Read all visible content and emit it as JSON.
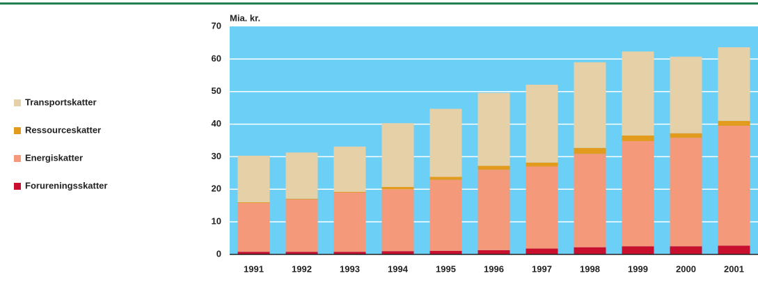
{
  "chart_data": {
    "type": "stacked_bar",
    "y_label": "Mia. kr.",
    "categories": [
      "1991",
      "1992",
      "1993",
      "1994",
      "1995",
      "1996",
      "1997",
      "1998",
      "1999",
      "2000",
      "2001"
    ],
    "series": [
      {
        "name": "Forureningsskatter",
        "color": "#c8102e",
        "values": [
          0.8,
          0.8,
          0.8,
          1.0,
          1.1,
          1.3,
          1.8,
          2.2,
          2.5,
          2.5,
          2.7
        ]
      },
      {
        "name": "Energiskatter",
        "color": "#f4997a",
        "values": [
          15.0,
          16.1,
          18.2,
          19.0,
          21.8,
          24.7,
          25.2,
          28.7,
          32.3,
          33.3,
          36.8
        ]
      },
      {
        "name": "Ressourceskatter",
        "color": "#e39b1e",
        "values": [
          0.2,
          0.2,
          0.2,
          0.7,
          0.9,
          1.2,
          1.2,
          1.8,
          1.7,
          1.4,
          1.5
        ]
      },
      {
        "name": "Transportskatter",
        "color": "#e6d0a7",
        "values": [
          14.3,
          14.2,
          13.9,
          19.6,
          20.9,
          22.4,
          23.9,
          26.3,
          25.8,
          23.5,
          22.6
        ]
      }
    ],
    "ylim": [
      0,
      70
    ],
    "yticks": [
      0,
      10,
      20,
      30,
      40,
      50,
      60,
      70
    ],
    "grid": true,
    "legend": "left"
  }
}
